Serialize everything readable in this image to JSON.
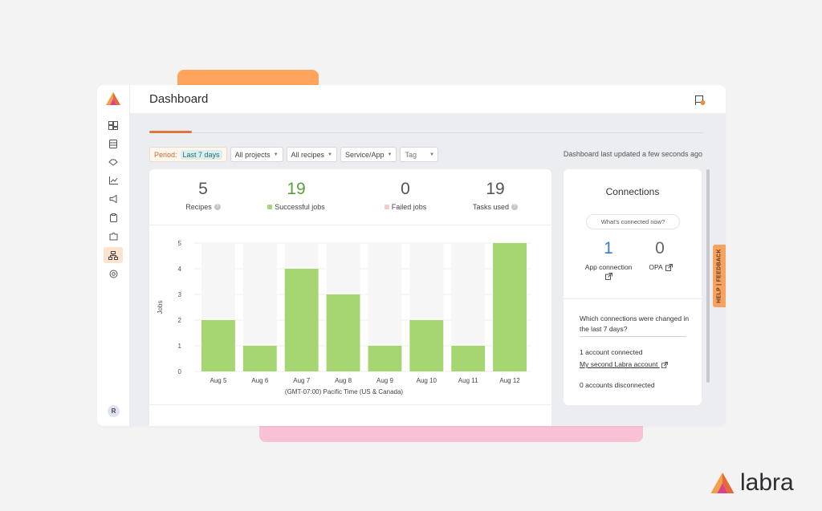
{
  "header": {
    "title": "Dashboard"
  },
  "filters": {
    "period_label": "Period:",
    "period_value": "Last 7 days",
    "projects": "All projects",
    "recipes": "All recipes",
    "service": "Service/App",
    "tag": "Tag"
  },
  "updated_text": "Dashboard last updated a few seconds ago",
  "stats": [
    {
      "value": "5",
      "label": "Recipes"
    },
    {
      "value": "19",
      "label": "Successful jobs"
    },
    {
      "value": "0",
      "label": "Failed jobs"
    },
    {
      "value": "19",
      "label": "Tasks used"
    }
  ],
  "chart_data": {
    "type": "bar",
    "categories": [
      "Aug 5",
      "Aug 6",
      "Aug 7",
      "Aug 8",
      "Aug 9",
      "Aug 10",
      "Aug 11",
      "Aug 12"
    ],
    "values": [
      2,
      1,
      4,
      3,
      1,
      2,
      1,
      5
    ],
    "ylim": [
      0,
      5
    ],
    "yticks": [
      "0",
      "1",
      "2",
      "3",
      "4",
      "5"
    ],
    "ylabel": "Jobs",
    "xlabel": "(GMT-07:00) Pacific Time (US & Canada)",
    "bar_color": "#a6d672",
    "track_color": "#f6f6f7"
  },
  "connections": {
    "title": "Connections",
    "pill": "What's connected now?",
    "app_count": "1",
    "app_label": "App connection",
    "opa_count": "0",
    "opa_label": "OPA",
    "question": "Which connections were changed in the last 7 days?",
    "connected_text": "1 account connected",
    "account_link": "My second Labra account",
    "disconnected_text": "0 accounts disconnected"
  },
  "help_tab": "HELP | FEEDBACK",
  "user": {
    "initial": "R"
  },
  "brand": {
    "name": "labra"
  },
  "colors": {
    "accent": "#e0763b",
    "success": "#5aa03c",
    "link_blue": "#3a7fc1",
    "failed": "#f6c9c9"
  }
}
